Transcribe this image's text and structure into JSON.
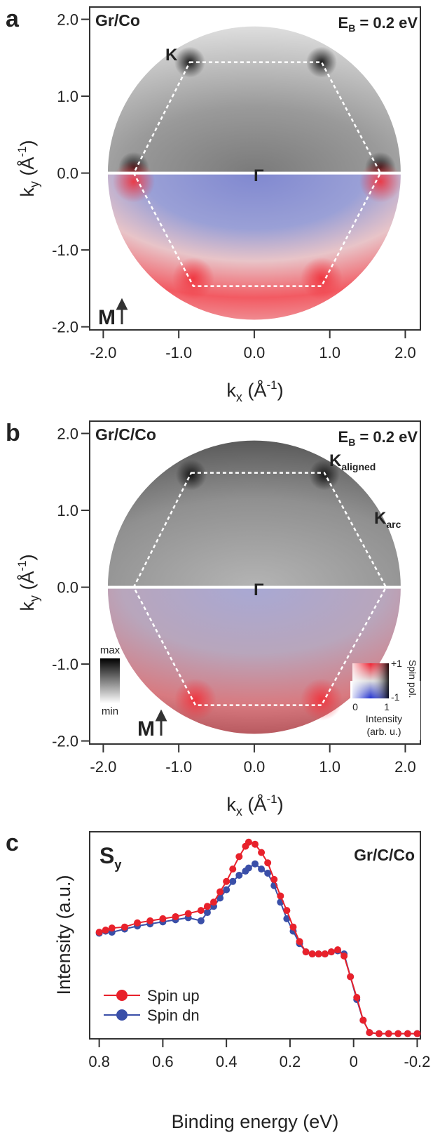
{
  "chart_data": [
    {
      "type": "map",
      "panel": "a",
      "title": "Gr/Co",
      "energy": [
        "E",
        "B",
        " = 0.2 eV"
      ],
      "k_label": "K",
      "gamma_label": "Γ",
      "m_label": "M",
      "xlabel": [
        "k",
        "x",
        " (Å",
        "-1",
        ")"
      ],
      "ylabel": [
        "k",
        "y",
        " (Å",
        "-1",
        ")"
      ],
      "xlim": [
        -2.18,
        2.2
      ],
      "ylim": [
        -2.04,
        2.16
      ],
      "xticks": [
        {
          "value": -2,
          "label": "-2.0"
        },
        {
          "value": -1,
          "label": "-1.0"
        },
        {
          "value": 0,
          "label": "0.0"
        },
        {
          "value": 1,
          "label": "1.0"
        },
        {
          "value": 2,
          "label": "2.0"
        }
      ],
      "yticks": [
        {
          "value": -2,
          "label": "-2.0"
        },
        {
          "value": -1,
          "label": "-1.0"
        },
        {
          "value": 0,
          "label": "0.0"
        },
        {
          "value": 1,
          "label": "1.0"
        },
        {
          "value": 2,
          "label": "2.0"
        }
      ]
    },
    {
      "type": "map",
      "panel": "b",
      "title": "Gr/C/Co",
      "energy": [
        "E",
        "B",
        " = 0.2 eV"
      ],
      "k_aligned": [
        "K",
        "aligned"
      ],
      "k_arc": [
        "K",
        "arc"
      ],
      "gamma_label": "Γ",
      "m_label": "M",
      "xlabel": [
        "k",
        "x",
        " (Å",
        "-1",
        ")"
      ],
      "ylabel": [
        "k",
        "y",
        " (Å",
        "-1",
        ")"
      ],
      "xlim": [
        -2.18,
        2.2
      ],
      "ylim": [
        -2.04,
        2.16
      ],
      "xticks": [
        {
          "value": -2,
          "label": "-2.0"
        },
        {
          "value": -1,
          "label": "-1.0"
        },
        {
          "value": 0,
          "label": "0.0"
        },
        {
          "value": 1,
          "label": "1.0"
        },
        {
          "value": 2,
          "label": "2.0"
        }
      ],
      "yticks": [
        {
          "value": -2,
          "label": "-2.0"
        },
        {
          "value": -1,
          "label": "-1.0"
        },
        {
          "value": 0,
          "label": "0.0"
        },
        {
          "value": 1,
          "label": "1.0"
        },
        {
          "value": 2,
          "label": "2.0"
        }
      ],
      "colorbar": {
        "max": "max",
        "min": "min"
      },
      "spin_colorbar": {
        "ticks": [
          {
            "value": 1,
            "label": "+1"
          },
          -1
        ],
        "label": "Spin pol.",
        "intensity_ticks": [
          0,
          1
        ],
        "intensity_label": [
          "Intensity",
          "(arb. u.)"
        ]
      }
    },
    {
      "type": "line",
      "panel": "c",
      "title": "Gr/C/Co",
      "annotation": [
        "S",
        "y"
      ],
      "xlabel": "Binding energy (eV)",
      "ylabel": "Intensity (a.u.)",
      "x": [
        0.8,
        0.78,
        0.76,
        0.72,
        0.68,
        0.64,
        0.6,
        0.56,
        0.52,
        0.48,
        0.46,
        0.44,
        0.42,
        0.4,
        0.38,
        0.36,
        0.34,
        0.33,
        0.31,
        0.29,
        0.27,
        0.25,
        0.23,
        0.21,
        0.19,
        0.17,
        0.15,
        0.13,
        0.11,
        0.09,
        0.07,
        0.05,
        0.03,
        0.01,
        -0.01,
        -0.03,
        -0.05,
        -0.08,
        -0.11,
        -0.14,
        -0.17,
        -0.2
      ],
      "series": [
        {
          "name": "Spin up",
          "color": "#e8212b",
          "values": [
            51.5,
            52.5,
            53.5,
            54,
            56,
            57,
            58,
            59,
            60.5,
            62,
            64,
            66,
            71,
            76,
            82,
            88,
            93,
            95,
            94,
            90,
            85,
            77,
            69,
            62,
            54,
            47,
            42,
            41,
            41,
            41,
            42,
            43,
            40,
            30,
            20,
            9,
            3,
            2.5,
            2.5,
            2.5,
            2.5,
            2.5
          ]
        },
        {
          "name": "Spin dn",
          "color": "#3a4fa8",
          "values": [
            51,
            52,
            51.5,
            53,
            54.5,
            55.5,
            56.5,
            57.5,
            58.5,
            57,
            61,
            64,
            68,
            72,
            76,
            79,
            81,
            82.5,
            84.5,
            82,
            80,
            74,
            66,
            58,
            52,
            46,
            42,
            41,
            41,
            41,
            42,
            42.5,
            41,
            30,
            19,
            9,
            3,
            2.5,
            2.5,
            2.5,
            2.5,
            2.5
          ]
        }
      ],
      "xlim": [
        0.83,
        -0.21
      ],
      "ylim": [
        0,
        100
      ],
      "xticks": [
        0.8,
        0.6,
        0.4,
        0.2,
        0,
        -0.2
      ],
      "legend": "lower left"
    }
  ]
}
